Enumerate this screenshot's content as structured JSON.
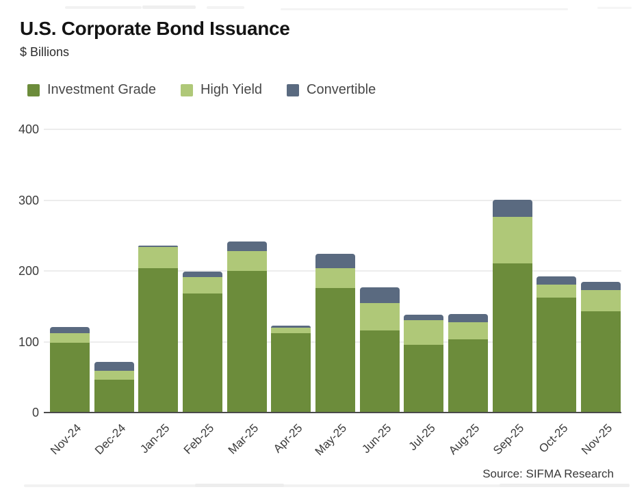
{
  "header": {
    "title": "U.S. Corporate Bond Issuance",
    "subtitle": "$ Billions"
  },
  "legend": {
    "items": [
      {
        "label": "Investment Grade",
        "color": "#6C8C3B"
      },
      {
        "label": "High Yield",
        "color": "#AFC878"
      },
      {
        "label": "Convertible",
        "color": "#5A6A80"
      }
    ]
  },
  "source_note": "Source: SIFMA Research",
  "chart_data": {
    "type": "bar",
    "stacked": true,
    "title": "U.S. Corporate Bond Issuance",
    "units_label": "$ Billions",
    "categories": [
      "Nov-24",
      "Dec-24",
      "Jan-25",
      "Feb-25",
      "Mar-25",
      "Apr-25",
      "May-25",
      "Jun-25",
      "Jul-25",
      "Aug-25",
      "Sep-25",
      "Oct-25",
      "Nov-25"
    ],
    "series": [
      {
        "name": "Investment Grade",
        "color": "#6C8C3B",
        "values": [
          98,
          45,
          203,
          167,
          199,
          111,
          175,
          115,
          95,
          102,
          210,
          161,
          142
        ]
      },
      {
        "name": "High Yield",
        "color": "#AFC878",
        "values": [
          13,
          13,
          30,
          23,
          28,
          8,
          28,
          39,
          34,
          25,
          65,
          19,
          30
        ]
      },
      {
        "name": "Convertible",
        "color": "#5A6A80",
        "values": [
          9,
          13,
          2,
          8,
          14,
          3,
          20,
          22,
          8,
          11,
          25,
          11,
          12
        ]
      }
    ],
    "totals": [
      120,
      71,
      235,
      198,
      241,
      122,
      223,
      176,
      137,
      138,
      300,
      191,
      184
    ],
    "ylim": [
      0,
      400
    ],
    "yticks": [
      0,
      100,
      200,
      300,
      400
    ],
    "grid": true,
    "legend_position": "top-left",
    "grid_color": "#ECECEC",
    "axis_color": "#4A4A4A"
  }
}
